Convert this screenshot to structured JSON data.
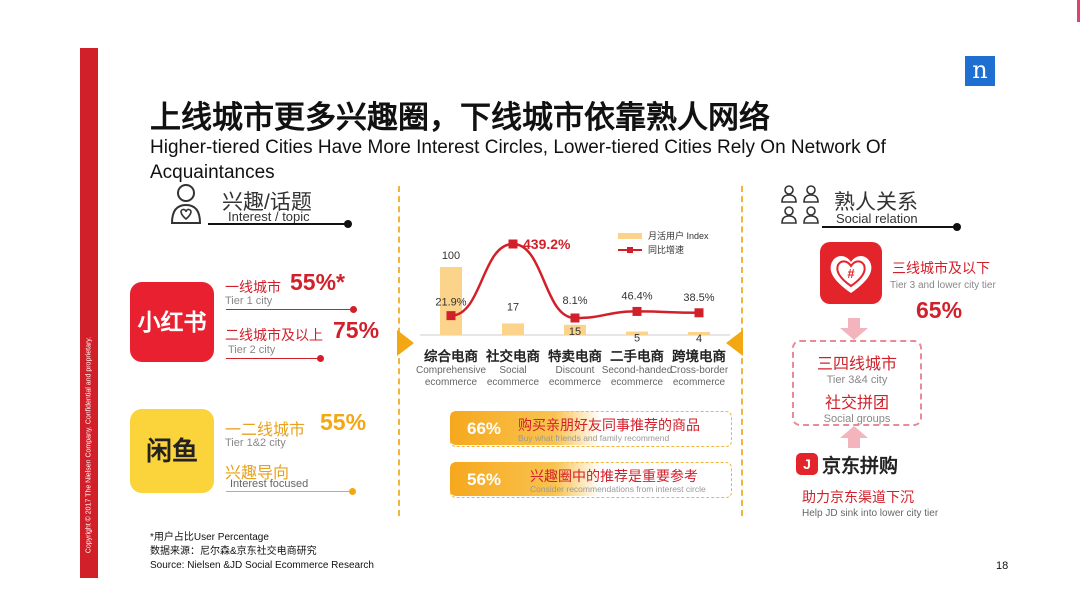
{
  "title_cn": "上线城市更多兴趣圈，下线城市依靠熟人网络",
  "title_en": "Higher-tiered Cities Have More Interest Circles, Lower-tiered Cities Rely On Network Of Acquaintances",
  "logo_letter": "n",
  "copyright": "Copyright © 2017 The Nielsen Company. Confidential and proprietary.",
  "left": {
    "section_cn": "兴趣/话题",
    "section_en": "Interest / topic",
    "xhs": {
      "logo_text": "小红书",
      "tier1_cn": "一线城市",
      "tier1_pct": "55%*",
      "tier1_en": "Tier 1 city",
      "tier2_cn": "二线城市及以上",
      "tier2_pct": "75%",
      "tier2_en": "Tier 2 city"
    },
    "xianyu": {
      "logo_text": "闲鱼",
      "tier_cn": "一二线城市",
      "tier_pct": "55%",
      "tier_en": "Tier 1&2 city",
      "interest_cn": "兴趣导向",
      "interest_en": "Interest focused"
    }
  },
  "right": {
    "section_cn": "熟人关系",
    "section_en": "Social relation",
    "pdd_cn": "三线城市及以下",
    "pdd_en": "Tier 3 and lower city tier",
    "pdd_pct": "65%",
    "box_line1_cn": "三四线城市",
    "box_line1_en": "Tier 3&4 city",
    "box_line2_cn": "社交拼团",
    "box_line2_en": "Social groups",
    "jd_logo_text": "京东拼购",
    "jd_cn": "助力京东渠道下沉",
    "jd_en": "Help JD sink into lower city tier"
  },
  "chart_data": {
    "type": "bar",
    "categories": [
      "综合电商",
      "社交电商",
      "特卖电商",
      "二手电商",
      "跨境电商"
    ],
    "categories_en": [
      "Comprehensive ecommerce",
      "Social ecommerce",
      "Discount ecommerce",
      "Second-handed ecommerce",
      "Cross-border ecommerce"
    ],
    "series": [
      {
        "name": "月活用户 Index",
        "type": "bar",
        "values": [
          100,
          17,
          15,
          5,
          4
        ],
        "labels": [
          "100",
          "17",
          "15",
          "5",
          "4"
        ]
      },
      {
        "name": "同比增速",
        "type": "line",
        "values": [
          21.9,
          439.2,
          8.1,
          46.4,
          38.5
        ],
        "labels": [
          "21.9%",
          "439.2%",
          "8.1%",
          "46.4%",
          "38.5%"
        ]
      }
    ],
    "colors": {
      "bar": "#fbd38a",
      "line": "#d2202a"
    },
    "legend": "top-right"
  },
  "stats": [
    {
      "pct": "66%",
      "cn": "购买亲朋好友同事推荐的商品",
      "en": "Buy what friends and family recommend"
    },
    {
      "pct": "56%",
      "cn": "兴趣圈中的推荐是重要参考",
      "en": "Consider recommendations from interest circle"
    }
  ],
  "footer": {
    "note": "*用户占比User Percentage",
    "source_cn": "数据来源：尼尔森&京东社交电商研究",
    "source_en": "Source: Nielsen &JD Social Ecommerce Research"
  },
  "page_number": "18",
  "colors": {
    "brand_red": "#d2202a",
    "accent_orange": "#f3a712",
    "nielsen_blue": "#1e6fd1"
  }
}
